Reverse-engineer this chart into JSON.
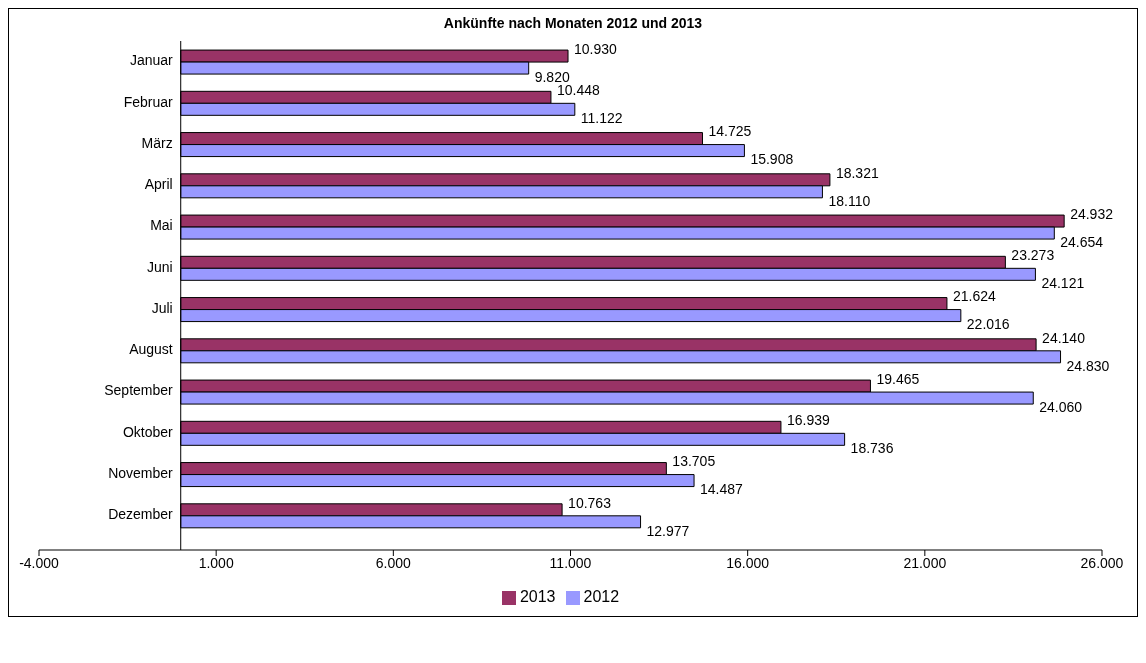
{
  "chart_data": {
    "type": "bar",
    "orientation": "horizontal",
    "title": "Ankünfte nach Monaten 2012 und 2013",
    "categories": [
      "Januar",
      "Februar",
      "März",
      "April",
      "Mai",
      "Juni",
      "Juli",
      "August",
      "September",
      "Oktober",
      "November",
      "Dezember"
    ],
    "series": [
      {
        "name": "2013",
        "color": "#993366",
        "values": [
          10930,
          10448,
          14725,
          18321,
          24932,
          23273,
          21624,
          24140,
          19465,
          16939,
          13705,
          10763
        ],
        "value_labels": [
          "10.930",
          "10.448",
          "14.725",
          "18.321",
          "24.932",
          "23.273",
          "21.624",
          "24.140",
          "19.465",
          "16.939",
          "13.705",
          "10.763"
        ]
      },
      {
        "name": "2012",
        "color": "#9999ff",
        "values": [
          9820,
          11122,
          15908,
          18110,
          24654,
          24121,
          22016,
          24830,
          24060,
          18736,
          14487,
          12977
        ],
        "value_labels": [
          "9.820",
          "11.122",
          "15.908",
          "18.110",
          "24.654",
          "24.121",
          "22.016",
          "24.830",
          "24.060",
          "18.736",
          "14.487",
          "12.977"
        ]
      }
    ],
    "xlim": [
      -4000,
      26000
    ],
    "xticks": [
      {
        "value": -4000,
        "label": "-4.000"
      },
      {
        "value": 1000,
        "label": "1.000"
      },
      {
        "value": 6000,
        "label": "6.000"
      },
      {
        "value": 11000,
        "label": "11.000"
      },
      {
        "value": 16000,
        "label": "16.000"
      },
      {
        "value": 21000,
        "label": "21.000"
      },
      {
        "value": 26000,
        "label": "26.000"
      }
    ],
    "grid": false,
    "legend": "bottom"
  }
}
